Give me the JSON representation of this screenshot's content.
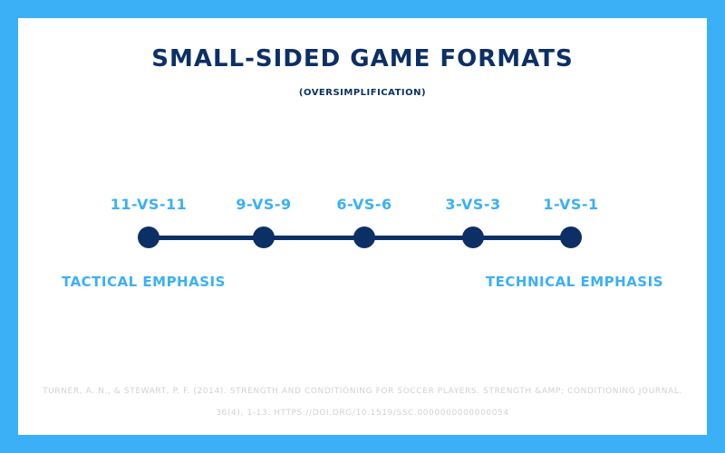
{
  "title": "SMALL-SIDED GAME FORMATS",
  "subtitle": "(OVERSIMPLIFICATION)",
  "formats": [
    "11-VS-11",
    "9-VS-9",
    "6-VS-6",
    "3-VS-3",
    "1-VS-1"
  ],
  "left_label": "TACTICAL EMPHASIS",
  "right_label": "TECHNICAL EMPHASIS",
  "citation_line1": "TURNER, A. N., & STEWART, P. F. (2014). STRENGTH AND CONDITIONING FOR SOCCER PLAYERS. STRENGTH &AMP; CONDITIONING JOURNAL.",
  "citation_line2": "36(4), 1-13. HTTPS://DOI.ORG/10.1519/SSC.0000000000000054",
  "colors": {
    "background": "#3bb0f7",
    "card": "#ffffff",
    "navy": "#0c2f66",
    "accent": "#3bb0f7",
    "citation": "#d2d2d2"
  }
}
